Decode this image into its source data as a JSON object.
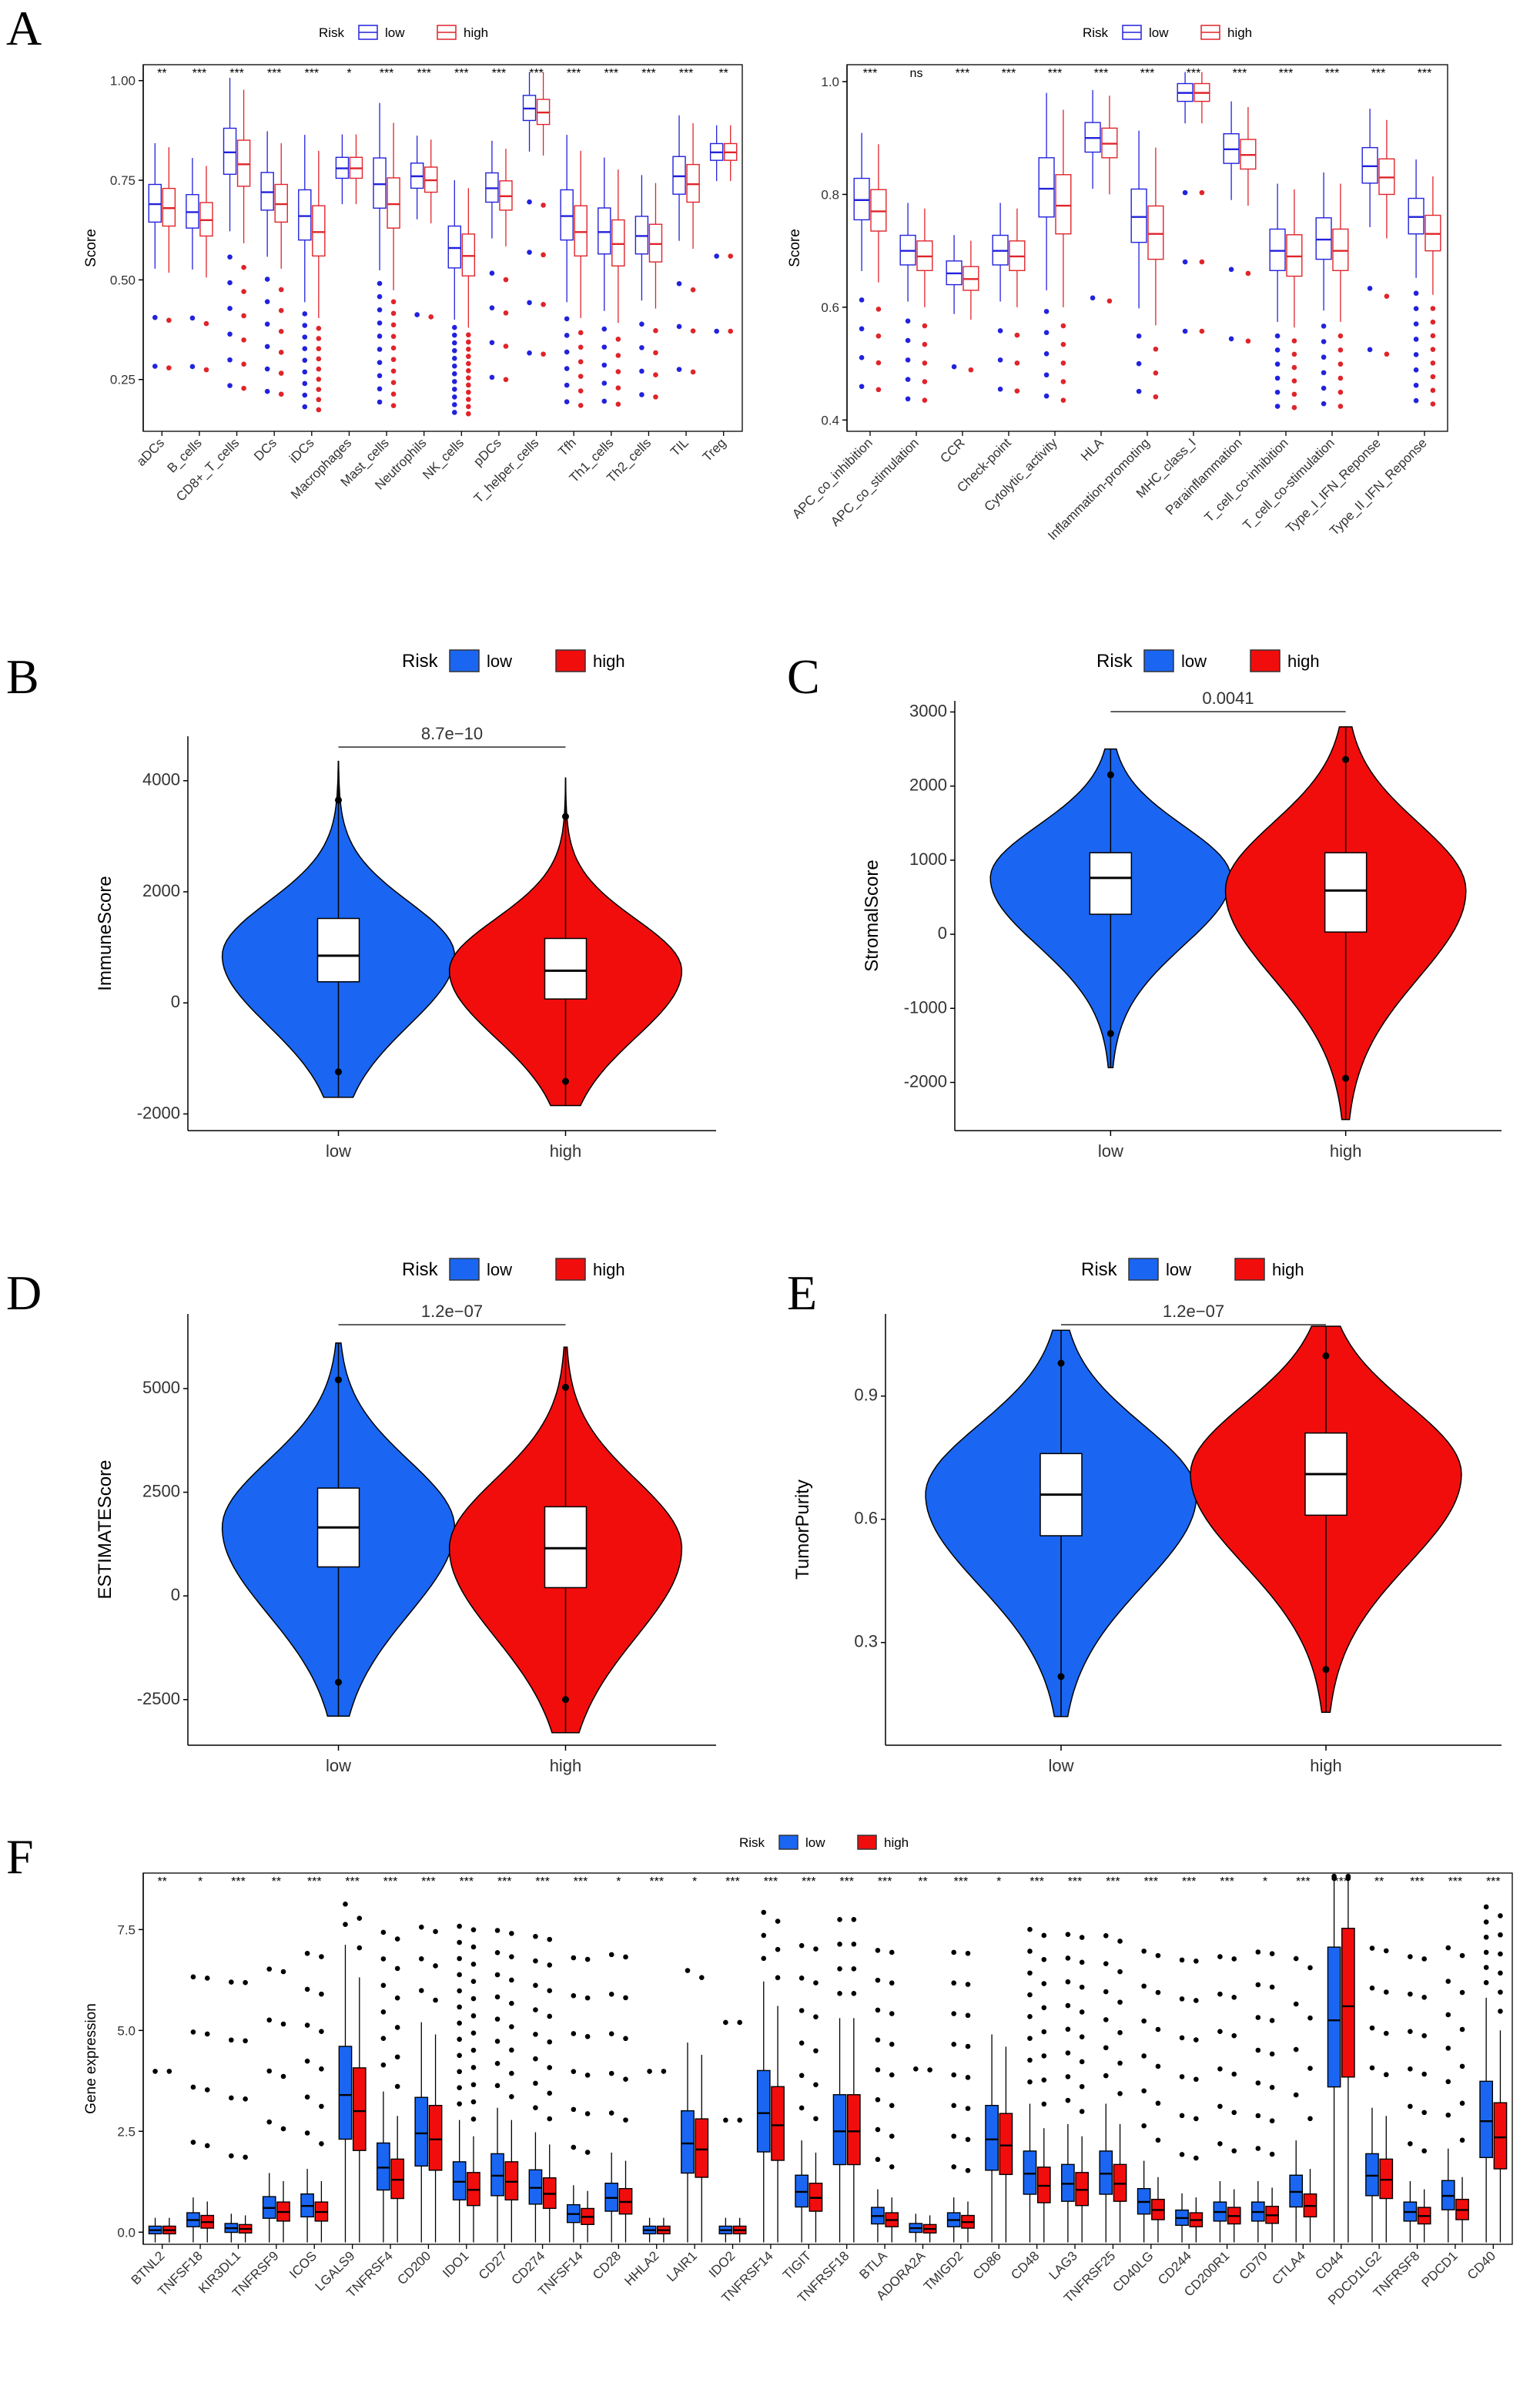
{
  "chart_data": [
    {
      "panel": "A",
      "type": "box",
      "legend": {
        "title": "Risk",
        "entries": [
          "low",
          "high"
        ]
      },
      "colors": {
        "low": "#2222dd",
        "high": "#e0242a"
      },
      "ylabel": "Score",
      "ylim": [
        0.12,
        1.04
      ],
      "yticks": [
        "0.25",
        "0.50",
        "0.75",
        "1.00"
      ],
      "categories": [
        "aDCs",
        "B_cells",
        "CD8+_T_cells",
        "DCs",
        "iDCs",
        "Macrophages",
        "Mast_cells",
        "Neutrophils",
        "NK_cells",
        "pDCs",
        "T_helper_cells",
        "Tfh",
        "Th1_cells",
        "Th2_cells",
        "TIL",
        "Treg"
      ],
      "significance": [
        "**",
        "***",
        "***",
        "***",
        "***",
        "*",
        "***",
        "***",
        "***",
        "***",
        "***",
        "***",
        "***",
        "***",
        "***",
        "**"
      ],
      "series": [
        {
          "name": "low",
          "medians": [
            0.69,
            0.67,
            0.82,
            0.72,
            0.66,
            0.78,
            0.74,
            0.76,
            0.58,
            0.73,
            0.93,
            0.66,
            0.62,
            0.61,
            0.76,
            0.82
          ]
        },
        {
          "name": "high",
          "medians": [
            0.68,
            0.65,
            0.79,
            0.69,
            0.62,
            0.78,
            0.69,
            0.75,
            0.56,
            0.71,
            0.92,
            0.62,
            0.59,
            0.59,
            0.74,
            0.82
          ]
        }
      ]
    },
    {
      "panel": "A2",
      "type": "box",
      "legend": {
        "title": "Risk",
        "entries": [
          "low",
          "high"
        ]
      },
      "colors": {
        "low": "#2222dd",
        "high": "#e0242a"
      },
      "ylabel": "Score",
      "ylim": [
        0.38,
        1.03
      ],
      "yticks": [
        "0.4",
        "0.6",
        "0.8",
        "1.0"
      ],
      "categories": [
        "APC_co_inhibition",
        "APC_co_stimulation",
        "CCR",
        "Check-point",
        "Cytolytic_activity",
        "HLA",
        "Inflammation-promoting",
        "MHC_class_I",
        "Parainflammation",
        "T_cell_co-inhibition",
        "T_cell_co-stimulation",
        "Type_I_IFN_Reponse",
        "Type_II_IFN_Reponse"
      ],
      "significance": [
        "***",
        "ns",
        "***",
        "***",
        "***",
        "***",
        "***",
        "***",
        "***",
        "***",
        "***",
        "***",
        "***"
      ],
      "series": [
        {
          "name": "low",
          "medians": [
            0.79,
            0.7,
            0.66,
            0.7,
            0.81,
            0.9,
            0.76,
            0.98,
            0.88,
            0.7,
            0.72,
            0.85,
            0.76
          ]
        },
        {
          "name": "high",
          "medians": [
            0.77,
            0.69,
            0.65,
            0.69,
            0.78,
            0.89,
            0.73,
            0.98,
            0.87,
            0.69,
            0.7,
            0.83,
            0.73
          ]
        }
      ]
    },
    {
      "panel": "B",
      "type": "violin",
      "ylabel": "ImmuneScore",
      "legend": {
        "title": "Risk",
        "entries": [
          "low",
          "high"
        ]
      },
      "colors": {
        "low": "#1a66f2",
        "high": "#f20d0d"
      },
      "categories": [
        "low",
        "high"
      ],
      "yticks": [
        "-2000",
        "0",
        "2000",
        "4000"
      ],
      "ylim": [
        -2300,
        4800
      ],
      "pvalue": "8.7e−10",
      "series": [
        {
          "name": "low",
          "median": 850,
          "q1": 380,
          "q3": 1520,
          "min": -1700,
          "max": 4350
        },
        {
          "name": "high",
          "median": 580,
          "q1": 70,
          "q3": 1160,
          "min": -1850,
          "max": 4050
        }
      ]
    },
    {
      "panel": "C",
      "type": "violin",
      "ylabel": "StromalScore",
      "legend": {
        "title": "Risk",
        "entries": [
          "low",
          "high"
        ]
      },
      "colors": {
        "low": "#1a66f2",
        "high": "#f20d0d"
      },
      "categories": [
        "low",
        "high"
      ],
      "yticks": [
        "-2000",
        "-1000",
        "0",
        "1000",
        "2000",
        "3000"
      ],
      "ylim": [
        -2650,
        3150
      ],
      "pvalue": "0.0041",
      "series": [
        {
          "name": "low",
          "median": 760,
          "q1": 270,
          "q3": 1100,
          "min": -1800,
          "max": 2500
        },
        {
          "name": "high",
          "median": 590,
          "q1": 30,
          "q3": 1100,
          "min": -2500,
          "max": 2800
        }
      ]
    },
    {
      "panel": "D",
      "type": "violin",
      "ylabel": "ESTIMATEScore",
      "legend": {
        "title": "Risk",
        "entries": [
          "low",
          "high"
        ]
      },
      "colors": {
        "low": "#1a66f2",
        "high": "#f20d0d"
      },
      "categories": [
        "low",
        "high"
      ],
      "yticks": [
        "-2500",
        "0",
        "2500",
        "5000"
      ],
      "ylim": [
        -3600,
        6800
      ],
      "pvalue": "1.2e−07",
      "series": [
        {
          "name": "low",
          "median": 1650,
          "q1": 700,
          "q3": 2600,
          "min": -2900,
          "max": 6100
        },
        {
          "name": "high",
          "median": 1150,
          "q1": 200,
          "q3": 2150,
          "min": -3300,
          "max": 6000
        }
      ]
    },
    {
      "panel": "E",
      "type": "violin",
      "ylabel": "TumorPurity",
      "legend": {
        "title": "Risk",
        "entries": [
          "low",
          "high"
        ]
      },
      "colors": {
        "low": "#1a66f2",
        "high": "#f20d0d"
      },
      "categories": [
        "low",
        "high"
      ],
      "yticks": [
        "0.3",
        "0.6",
        "0.9"
      ],
      "ylim": [
        0.05,
        1.1
      ],
      "pvalue": "1.2e−07",
      "series": [
        {
          "name": "low",
          "median": 0.66,
          "q1": 0.56,
          "q3": 0.76,
          "min": 0.12,
          "max": 1.06
        },
        {
          "name": "high",
          "median": 0.71,
          "q1": 0.61,
          "q3": 0.81,
          "min": 0.13,
          "max": 1.07
        }
      ]
    },
    {
      "panel": "F",
      "type": "box",
      "ylabel": "Gene expression",
      "legend": {
        "title": "Risk",
        "entries": [
          "low",
          "high"
        ]
      },
      "colors": {
        "low": "#1a66f2",
        "high": "#f20d0d"
      },
      "yticks": [
        "0.0",
        "2.5",
        "5.0",
        "7.5"
      ],
      "ylim": [
        -0.3,
        8.9
      ],
      "categories": [
        "BTNL2",
        "TNFSF18",
        "KIR3DL1",
        "TNFRSF9",
        "ICOS",
        "LGALS9",
        "TNFRSF4",
        "CD200",
        "IDO1",
        "CD27",
        "CD274",
        "TNFSF14",
        "CD28",
        "HHLA2",
        "LAIR1",
        "IDO2",
        "TNFRSF14",
        "TIGIT",
        "TNFRSF18",
        "BTLA",
        "ADORA2A",
        "TMIGD2",
        "CD86",
        "CD48",
        "LAG3",
        "TNFRSF25",
        "CD40LG",
        "CD244",
        "CD200R1",
        "CD70",
        "CTLA4",
        "CD44",
        "PDCD1LG2",
        "TNFRSF8",
        "PDCD1",
        "CD40"
      ],
      "significance": [
        "**",
        "*",
        "***",
        "**",
        "***",
        "***",
        "***",
        "***",
        "***",
        "***",
        "***",
        "***",
        "*",
        "***",
        "*",
        "***",
        "***",
        "***",
        "***",
        "***",
        "**",
        "***",
        "*",
        "***",
        "***",
        "***",
        "***",
        "***",
        "***",
        "*",
        "***",
        "***",
        "**",
        "***",
        "***",
        "***"
      ],
      "series": [
        {
          "name": "low",
          "medians": [
            0.05,
            0.3,
            0.1,
            0.6,
            0.65,
            3.4,
            1.6,
            2.45,
            1.25,
            1.4,
            1.1,
            0.45,
            0.85,
            0.05,
            2.2,
            0.05,
            2.95,
            1.0,
            2.5,
            0.4,
            0.1,
            0.3,
            2.3,
            1.45,
            1.2,
            1.45,
            0.75,
            0.35,
            0.5,
            0.5,
            1.0,
            5.25,
            1.4,
            0.5,
            0.9,
            2.75
          ]
        },
        {
          "name": "high",
          "medians": [
            0.05,
            0.25,
            0.08,
            0.5,
            0.5,
            3.0,
            1.3,
            2.3,
            1.05,
            1.25,
            0.95,
            0.38,
            0.75,
            0.05,
            2.05,
            0.05,
            2.65,
            0.85,
            2.5,
            0.3,
            0.08,
            0.25,
            2.15,
            1.15,
            1.05,
            1.2,
            0.55,
            0.3,
            0.4,
            0.42,
            0.65,
            5.6,
            1.3,
            0.4,
            0.55,
            2.35
          ]
        }
      ]
    }
  ],
  "panel_letters": {
    "a": "A",
    "b": "B",
    "c": "C",
    "d": "D",
    "e": "E",
    "f": "F"
  }
}
